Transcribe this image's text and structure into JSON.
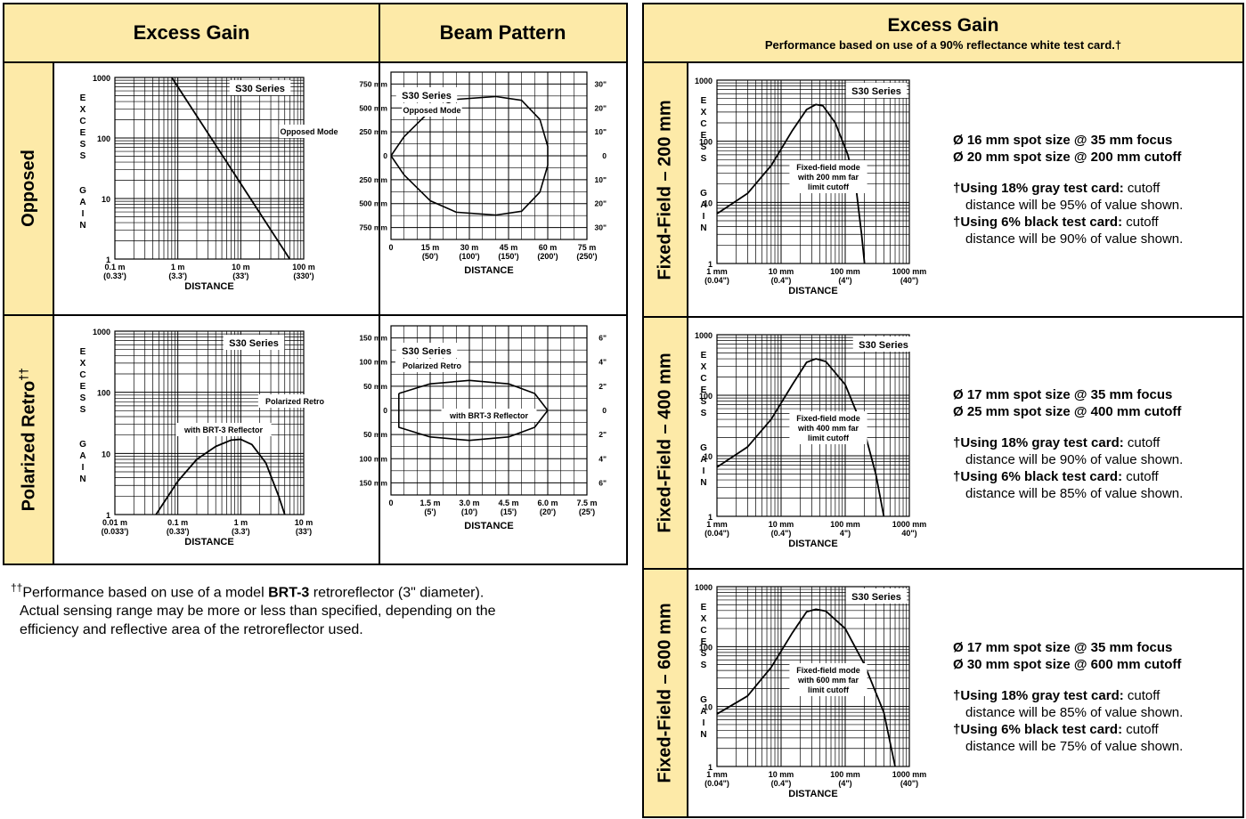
{
  "left_table": {
    "header_excess": "Excess Gain",
    "header_beam": "Beam Pattern",
    "row_opposed": "Opposed",
    "row_retro": "Polarized Retro",
    "row_retro_sup": "††"
  },
  "right_table": {
    "header_title": "Excess Gain",
    "header_sub": "Performance based on use of a 90% reflectance white test card.†",
    "rows": [
      {
        "label": "Fixed-Field – 200 mm",
        "spot1": "Ø 16 mm spot size @ 35 mm focus",
        "spot2": "Ø 20 mm spot size @ 200 mm cutoff",
        "gray_label": "†Using 18% gray test card:",
        "gray_rest": "cutoff",
        "gray_line2": "distance will be 95% of value shown.",
        "black_label": "†Using 6% black test card:",
        "black_rest": "cutoff",
        "black_line2": "distance will be 90% of value shown."
      },
      {
        "label": "Fixed-Field – 400 mm",
        "spot1": "Ø 17 mm spot size @ 35 mm focus",
        "spot2": "Ø 25 mm spot size @ 400 mm cutoff",
        "gray_label": "†Using 18% gray test card:",
        "gray_rest": "cutoff",
        "gray_line2": "distance will be 90% of value shown.",
        "black_label": "†Using 6% black test card:",
        "black_rest": "cutoff",
        "black_line2": "distance will be 85% of value shown."
      },
      {
        "label": "Fixed-Field – 600 mm",
        "spot1": "Ø 17 mm spot size @ 35 mm focus",
        "spot2": "Ø 30 mm spot size @ 600 mm cutoff",
        "gray_label": "†Using 18% gray test card:",
        "gray_rest": "cutoff",
        "gray_line2": "distance will be 85% of value shown.",
        "black_label": "†Using 6% black test card:",
        "black_rest": "cutoff",
        "black_line2": "distance will be 75% of value shown."
      }
    ]
  },
  "footnote": {
    "sup": "††",
    "pre": "Performance based on use of a model ",
    "bold": "BRT-3",
    "post": " retroreflector (3\" diameter).",
    "line2": "Actual sensing range may be more or less than specified, depending on the",
    "line3": "efficiency and reflective area of the retroreflector used."
  },
  "colors": {
    "header_bg": "#fdeaa8",
    "line": "#000000"
  },
  "chart_data": [
    {
      "id": "eg-opposed",
      "type": "line",
      "log_x": true,
      "log_y": true,
      "xlim": [
        0.1,
        100
      ],
      "ylim": [
        1,
        1000
      ],
      "xticks": [
        {
          "v": 0.1,
          "l1": "0.1 m",
          "l2": "(0.33')"
        },
        {
          "v": 1,
          "l1": "1 m",
          "l2": "(3.3')"
        },
        {
          "v": 10,
          "l1": "10 m",
          "l2": "(33')"
        },
        {
          "v": 100,
          "l1": "100 m",
          "l2": "(330')"
        }
      ],
      "yticks": [
        "1",
        "10",
        "100",
        "1000"
      ],
      "xlabel": "DISTANCE",
      "ylabel": "EXCESS GAIN",
      "series_label": "S30 Series",
      "mode_label": "Opposed Mode",
      "curve": [
        [
          0.8,
          1000
        ],
        [
          60,
          1
        ]
      ]
    },
    {
      "id": "eg-retro",
      "type": "line",
      "log_x": true,
      "log_y": true,
      "xlim": [
        0.01,
        10
      ],
      "ylim": [
        1,
        1000
      ],
      "xticks": [
        {
          "v": 0.01,
          "l1": "0.01 m",
          "l2": "(0.033')"
        },
        {
          "v": 0.1,
          "l1": "0.1 m",
          "l2": "(0.33')"
        },
        {
          "v": 1,
          "l1": "1 m",
          "l2": "(3.3')"
        },
        {
          "v": 10,
          "l1": "10 m",
          "l2": "(33')"
        }
      ],
      "yticks": [
        "1",
        "10",
        "100",
        "1000"
      ],
      "xlabel": "DISTANCE",
      "ylabel": "EXCESS GAIN",
      "series_label": "S30 Series",
      "mode_label": "Polarized Retro",
      "mode_label2": "with BRT-3 Reflector",
      "curve": [
        [
          0.045,
          1
        ],
        [
          0.1,
          3.5
        ],
        [
          0.2,
          8
        ],
        [
          0.4,
          13
        ],
        [
          0.7,
          16.5
        ],
        [
          1,
          17
        ],
        [
          1.5,
          14
        ],
        [
          2.5,
          7
        ],
        [
          4,
          2
        ],
        [
          5,
          1
        ]
      ]
    },
    {
      "id": "beam-opposed",
      "type": "line",
      "xlim": [
        0,
        75
      ],
      "ylim": [
        -875,
        875
      ],
      "xticks": [
        {
          "v": 0,
          "l1": "0",
          "l2": ""
        },
        {
          "v": 15,
          "l1": "15 m",
          "l2": "(50')"
        },
        {
          "v": 30,
          "l1": "30 m",
          "l2": "(100')"
        },
        {
          "v": 45,
          "l1": "45 m",
          "l2": "(150')"
        },
        {
          "v": 60,
          "l1": "60 m",
          "l2": "(200')"
        },
        {
          "v": 75,
          "l1": "75 m",
          "l2": "(250')"
        }
      ],
      "left_labels": [
        "750 mm",
        "500 mm",
        "250 mm",
        "0",
        "250 mm",
        "500 mm",
        "750 mm"
      ],
      "right_labels": [
        "30\"",
        "20\"",
        "10\"",
        "0",
        "10\"",
        "20\"",
        "30\""
      ],
      "xlabel": "DISTANCE",
      "series_label": "S30 Series",
      "mode_label": "Opposed Mode",
      "curve": [
        [
          0,
          0
        ],
        [
          5,
          200
        ],
        [
          15,
          470
        ],
        [
          25,
          590
        ],
        [
          40,
          620
        ],
        [
          50,
          580
        ],
        [
          57,
          380
        ],
        [
          60,
          100
        ],
        [
          60,
          -100
        ],
        [
          57,
          -380
        ],
        [
          50,
          -580
        ],
        [
          40,
          -620
        ],
        [
          25,
          -590
        ],
        [
          15,
          -470
        ],
        [
          5,
          -200
        ],
        [
          0,
          0
        ]
      ]
    },
    {
      "id": "beam-retro",
      "type": "line",
      "xlim": [
        0,
        7.5
      ],
      "ylim": [
        -175,
        175
      ],
      "xticks": [
        {
          "v": 0,
          "l1": "0",
          "l2": ""
        },
        {
          "v": 1.5,
          "l1": "1.5 m",
          "l2": "(5')"
        },
        {
          "v": 3.0,
          "l1": "3.0 m",
          "l2": "(10')"
        },
        {
          "v": 4.5,
          "l1": "4.5 m",
          "l2": "(15')"
        },
        {
          "v": 6.0,
          "l1": "6.0 m",
          "l2": "(20')"
        },
        {
          "v": 7.5,
          "l1": "7.5 m",
          "l2": "(25')"
        }
      ],
      "left_labels": [
        "150 mm",
        "100 mm",
        "50 mm",
        "0",
        "50 mm",
        "100 mm",
        "150 mm"
      ],
      "right_labels": [
        "6\"",
        "4\"",
        "2\"",
        "0",
        "2\"",
        "4\"",
        "6\""
      ],
      "xlabel": "DISTANCE",
      "series_label": "S30 Series",
      "mode_label": "Polarized Retro",
      "mode_label2": "with BRT-3 Reflector",
      "curve": [
        [
          0.3,
          35
        ],
        [
          1.5,
          55
        ],
        [
          3.0,
          62
        ],
        [
          4.5,
          55
        ],
        [
          5.5,
          35
        ],
        [
          6.0,
          0
        ],
        [
          5.5,
          -35
        ],
        [
          4.5,
          -55
        ],
        [
          3.0,
          -62
        ],
        [
          1.5,
          -55
        ],
        [
          0.3,
          -35
        ],
        [
          0.3,
          35
        ]
      ]
    },
    {
      "id": "ff-200",
      "type": "line",
      "log_x": true,
      "log_y": true,
      "xlim": [
        1,
        1000
      ],
      "ylim": [
        1,
        1000
      ],
      "xticks": [
        {
          "v": 1,
          "l1": "1 mm",
          "l2": "(0.04\")"
        },
        {
          "v": 10,
          "l1": "10 mm",
          "l2": "(0.4\")"
        },
        {
          "v": 100,
          "l1": "100 mm",
          "l2": "(4\")"
        },
        {
          "v": 1000,
          "l1": "1000 mm",
          "l2": "(40\")"
        }
      ],
      "yticks": [
        "1",
        "10",
        "100",
        "1000"
      ],
      "xlabel": "DISTANCE",
      "ylabel": "EXCESS GAIN",
      "series_label": "S30 Series",
      "mode_label": "Fixed-field mode",
      "mode_label2": "with 200 mm far",
      "mode_label3": "limit cutoff",
      "curve": [
        [
          1,
          6.5
        ],
        [
          3,
          14
        ],
        [
          7,
          40
        ],
        [
          15,
          150
        ],
        [
          25,
          330
        ],
        [
          35,
          400
        ],
        [
          45,
          380
        ],
        [
          70,
          200
        ],
        [
          110,
          60
        ],
        [
          150,
          15
        ],
        [
          180,
          3
        ],
        [
          200,
          1
        ]
      ]
    },
    {
      "id": "ff-400",
      "type": "line",
      "log_x": true,
      "log_y": true,
      "xlim": [
        1,
        1000
      ],
      "ylim": [
        1,
        1000
      ],
      "xticks": [
        {
          "v": 1,
          "l1": "1 mm",
          "l2": "(0.04\")"
        },
        {
          "v": 10,
          "l1": "10 mm",
          "l2": "(0.4\")"
        },
        {
          "v": 100,
          "l1": "100 mm",
          "l2": "4\")"
        },
        {
          "v": 1000,
          "l1": "1000 mm",
          "l2": "40\")"
        }
      ],
      "yticks": [
        "1",
        "10",
        "100",
        "1000"
      ],
      "xlabel": "DISTANCE",
      "ylabel": "EXCESS GAIN",
      "series_label": "S30 Series",
      "mode_label": "Fixed-field mode",
      "mode_label2": "with 400 mm far",
      "mode_label3": "limit cutoff",
      "curve": [
        [
          1,
          6.5
        ],
        [
          3,
          14
        ],
        [
          7,
          40
        ],
        [
          15,
          150
        ],
        [
          25,
          350
        ],
        [
          35,
          400
        ],
        [
          50,
          360
        ],
        [
          100,
          150
        ],
        [
          200,
          25
        ],
        [
          300,
          5
        ],
        [
          400,
          1
        ]
      ]
    },
    {
      "id": "ff-600",
      "type": "line",
      "log_x": true,
      "log_y": true,
      "xlim": [
        1,
        1000
      ],
      "ylim": [
        1,
        1000
      ],
      "xticks": [
        {
          "v": 1,
          "l1": "1 mm",
          "l2": "(0.04\")"
        },
        {
          "v": 10,
          "l1": "10 mm",
          "l2": "(0.4\")"
        },
        {
          "v": 100,
          "l1": "100 mm",
          "l2": "(4\")"
        },
        {
          "v": 1000,
          "l1": "1000 mm",
          "l2": "(40\")"
        }
      ],
      "yticks": [
        "1",
        "10",
        "100",
        "1000"
      ],
      "xlabel": "DISTANCE",
      "ylabel": "EXCESS GAIN",
      "series_label": "S30 Series",
      "mode_label": "Fixed-field mode",
      "mode_label2": "with 600 mm far",
      "mode_label3": "limit cutoff",
      "curve": [
        [
          1,
          7.5
        ],
        [
          3,
          15
        ],
        [
          7,
          45
        ],
        [
          15,
          170
        ],
        [
          25,
          380
        ],
        [
          35,
          420
        ],
        [
          50,
          390
        ],
        [
          100,
          200
        ],
        [
          200,
          50
        ],
        [
          400,
          8
        ],
        [
          600,
          1
        ]
      ]
    }
  ]
}
